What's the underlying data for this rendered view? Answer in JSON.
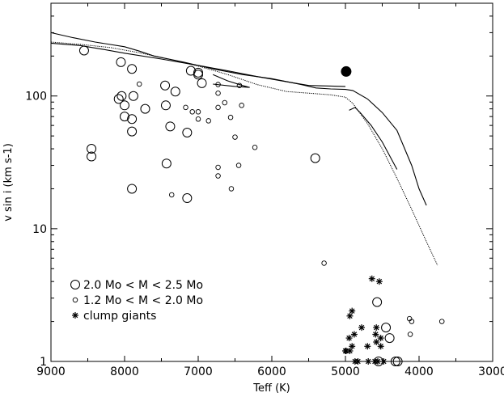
{
  "chart_data": {
    "type": "scatter",
    "xlabel": "Teff (K)",
    "ylabel": "v sin i (km s-1)",
    "xlim": [
      9000,
      3000
    ],
    "ylim": [
      1,
      500
    ],
    "y_scale": "log",
    "x_ticks": [
      9000,
      8000,
      7000,
      6000,
      5000,
      4000,
      3000
    ],
    "x_tick_labels": [
      "9000",
      "8000",
      "7000",
      "6000",
      "5000",
      "4000",
      "3000"
    ],
    "y_ticks": [
      1,
      10,
      100
    ],
    "y_tick_labels": [
      "1",
      "10",
      "100"
    ],
    "legend": {
      "placement": "bottom-left",
      "entries": [
        {
          "marker": "large-circle",
          "label": "2.0 Mo < M < 2.5 Mo"
        },
        {
          "marker": "small-circle",
          "label": "1.2 Mo < M < 2.0 Mo"
        },
        {
          "marker": "asterisk",
          "label": "clump giants"
        }
      ]
    },
    "series": [
      {
        "marker": "large-circle",
        "points": [
          [
            8550,
            220
          ],
          [
            8050,
            180
          ],
          [
            7900,
            160
          ],
          [
            7100,
            155
          ],
          [
            7000,
            150
          ],
          [
            7000,
            145
          ],
          [
            6950,
            125
          ],
          [
            7450,
            120
          ],
          [
            8080,
            95
          ],
          [
            8040,
            100
          ],
          [
            7880,
            100
          ],
          [
            7720,
            80
          ],
          [
            8000,
            85
          ],
          [
            7440,
            85
          ],
          [
            7310,
            108
          ],
          [
            8000,
            70
          ],
          [
            7900,
            67
          ],
          [
            7900,
            54
          ],
          [
            7380,
            59
          ],
          [
            7150,
            53
          ],
          [
            8450,
            40
          ],
          [
            8450,
            35
          ],
          [
            7430,
            31
          ],
          [
            7900,
            20
          ],
          [
            7150,
            17
          ],
          [
            5410,
            34
          ],
          [
            4570,
            2.8
          ],
          [
            4450,
            1.8
          ],
          [
            4400,
            1.5
          ],
          [
            4550,
            1.0
          ],
          [
            4320,
            1.0
          ],
          [
            4290,
            1.0
          ]
        ]
      },
      {
        "marker": "small-circle",
        "points": [
          [
            7800,
            123
          ],
          [
            6730,
            122
          ],
          [
            6440,
            120
          ],
          [
            7170,
            82
          ],
          [
            7080,
            76
          ],
          [
            7000,
            76
          ],
          [
            6730,
            82
          ],
          [
            6640,
            89
          ],
          [
            6410,
            85
          ],
          [
            7000,
            67
          ],
          [
            6860,
            65
          ],
          [
            6560,
            69
          ],
          [
            6500,
            49
          ],
          [
            6230,
            41
          ],
          [
            6730,
            29
          ],
          [
            6730,
            25
          ],
          [
            6450,
            30
          ],
          [
            6550,
            20
          ],
          [
            7360,
            18
          ],
          [
            6730,
            105
          ],
          [
            5290,
            5.5
          ],
          [
            4130,
            2.1
          ],
          [
            4100,
            2.0
          ],
          [
            3690,
            2.0
          ],
          [
            4120,
            1.6
          ]
        ]
      },
      {
        "marker": "asterisk",
        "points": [
          [
            4640,
            4.2
          ],
          [
            4540,
            4.0
          ],
          [
            4910,
            2.4
          ],
          [
            4940,
            2.2
          ],
          [
            4780,
            1.8
          ],
          [
            4580,
            1.8
          ],
          [
            4880,
            1.6
          ],
          [
            4950,
            1.5
          ],
          [
            4590,
            1.6
          ],
          [
            4520,
            1.5
          ],
          [
            4910,
            1.3
          ],
          [
            4700,
            1.3
          ],
          [
            5000,
            1.2
          ],
          [
            4940,
            1.2
          ],
          [
            4990,
            1.2
          ],
          [
            4580,
            1.4
          ],
          [
            4870,
            1.0
          ],
          [
            4830,
            1.0
          ],
          [
            4690,
            1.0
          ],
          [
            4600,
            1.0
          ],
          [
            4560,
            1.0
          ],
          [
            4480,
            1.0
          ],
          [
            4520,
            1.3
          ]
        ]
      },
      {
        "marker": "filled-circle",
        "points": [
          [
            4990,
            153
          ]
        ]
      }
    ],
    "curves": [
      {
        "style": "solid",
        "points": [
          [
            9000,
            300
          ],
          [
            8700,
            275
          ],
          [
            8400,
            255
          ],
          [
            8000,
            235
          ],
          [
            7800,
            218
          ],
          [
            7600,
            200
          ],
          [
            7200,
            180
          ],
          [
            6800,
            160
          ],
          [
            6400,
            145
          ],
          [
            6000,
            135
          ],
          [
            5600,
            122
          ],
          [
            5400,
            115
          ],
          [
            5200,
            113
          ],
          [
            5000,
            112
          ],
          [
            4900,
            110
          ],
          [
            4700,
            95
          ],
          [
            4500,
            75
          ],
          [
            4300,
            55
          ],
          [
            4100,
            30
          ],
          [
            4000,
            20
          ],
          [
            3900,
            15
          ]
        ]
      },
      {
        "style": "solid",
        "points": [
          [
            9000,
            250
          ],
          [
            8600,
            240
          ],
          [
            8300,
            225
          ],
          [
            8000,
            210
          ],
          [
            7500,
            190
          ],
          [
            7000,
            170
          ],
          [
            6600,
            155
          ],
          [
            6200,
            140
          ],
          [
            5800,
            128
          ],
          [
            5500,
            120
          ],
          [
            5000,
            118
          ]
        ]
      },
      {
        "style": "dotted",
        "points": [
          [
            9000,
            255
          ],
          [
            8600,
            245
          ],
          [
            8200,
            232
          ],
          [
            7800,
            212
          ],
          [
            7400,
            190
          ],
          [
            7000,
            168
          ],
          [
            6600,
            145
          ],
          [
            6200,
            122
          ],
          [
            5800,
            108
          ],
          [
            5400,
            104
          ],
          [
            5200,
            102
          ],
          [
            5000,
            98
          ],
          [
            4900,
            88
          ],
          [
            4700,
            62
          ],
          [
            4500,
            40
          ],
          [
            4300,
            24
          ],
          [
            4100,
            14
          ],
          [
            3900,
            8
          ],
          [
            3750,
            5.3
          ]
        ]
      },
      {
        "style": "solid",
        "points": [
          [
            4950,
            78
          ],
          [
            4870,
            82
          ],
          [
            4800,
            75
          ],
          [
            4650,
            60
          ],
          [
            4500,
            45
          ],
          [
            4300,
            28
          ]
        ]
      },
      {
        "style": "solid",
        "points": [
          [
            6800,
            145
          ],
          [
            6600,
            130
          ],
          [
            6400,
            120
          ],
          [
            6300,
            116
          ],
          [
            6500,
            118
          ],
          [
            6800,
            123
          ]
        ]
      }
    ]
  }
}
